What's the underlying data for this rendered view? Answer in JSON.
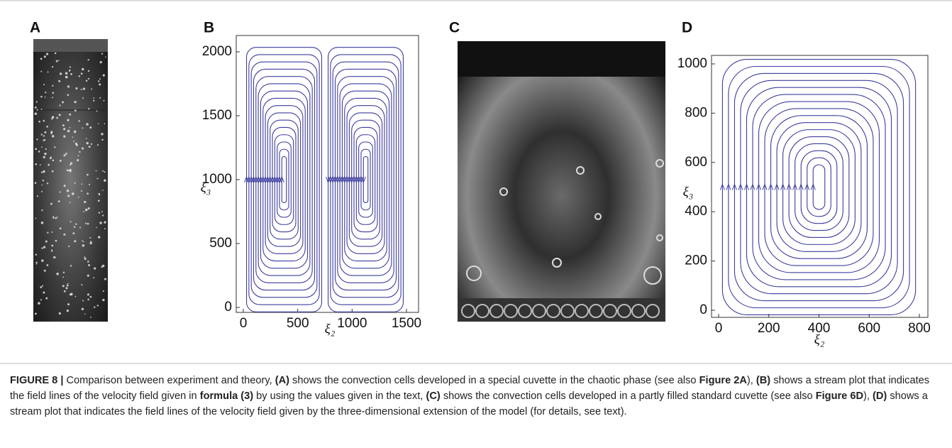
{
  "figure": {
    "panels": [
      {
        "label": "A"
      },
      {
        "label": "B"
      },
      {
        "label": "C"
      },
      {
        "label": "D"
      }
    ]
  },
  "chart_data": [
    {
      "type": "stream",
      "xlabel": "ξ₂",
      "ylabel": "ξ₃",
      "color": "#3d3d9e",
      "xlim": [
        0,
        1500
      ],
      "ylim": [
        0,
        2000
      ],
      "xticks": [
        0,
        500,
        1000,
        1500
      ],
      "yticks": [
        0,
        500,
        1000,
        1500,
        2000
      ]
    },
    {
      "type": "stream",
      "xlabel": "ξ₂",
      "ylabel": "ξ₃",
      "color": "#3d3d9e",
      "xlim": [
        0,
        800
      ],
      "ylim": [
        0,
        1000
      ],
      "xticks": [
        0,
        200,
        400,
        600,
        800
      ],
      "yticks": [
        0,
        200,
        400,
        600,
        800,
        1000
      ]
    }
  ],
  "caption": {
    "segments": [
      {
        "text": "FIGURE 8 |",
        "bold": true
      },
      {
        "text": " Comparison between experiment and theory, ",
        "bold": false
      },
      {
        "text": "(A)",
        "bold": true
      },
      {
        "text": " shows the convection cells developed in a special cuvette in the chaotic phase (see also ",
        "bold": false
      },
      {
        "text": "Figure 2A",
        "bold": true
      },
      {
        "text": "), ",
        "bold": false
      },
      {
        "text": "(B)",
        "bold": true
      },
      {
        "text": " shows a stream plot that indicates the field lines of the velocity field given in ",
        "bold": false
      },
      {
        "text": "formula (3)",
        "bold": true
      },
      {
        "text": " by using the values given in the text, ",
        "bold": false
      },
      {
        "text": "(C)",
        "bold": true
      },
      {
        "text": " shows the convection cells developed in a partly filled standard cuvette (see also ",
        "bold": false
      },
      {
        "text": "Figure 6D",
        "bold": true
      },
      {
        "text": "), ",
        "bold": false
      },
      {
        "text": "(D)",
        "bold": true
      },
      {
        "text": " shows a stream plot that indicates the field lines of the velocity field given by the three-dimensional extension of the model (for details, see text).",
        "bold": false
      }
    ]
  }
}
